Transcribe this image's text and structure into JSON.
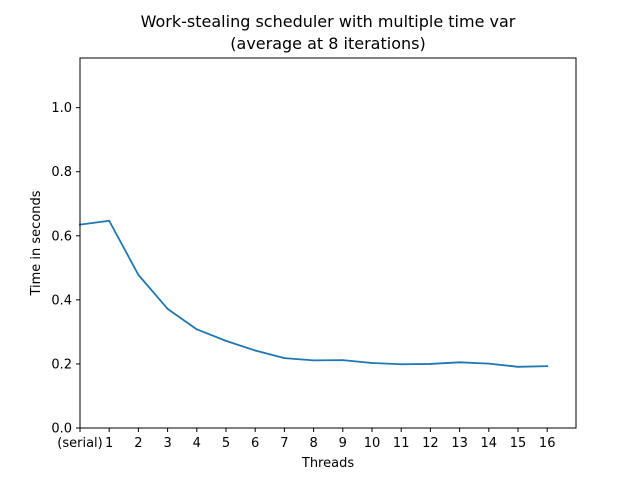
{
  "chart_data": {
    "type": "line",
    "title": "Work-stealing scheduler with multiple time var",
    "subtitle": "(average at 8 iterations)",
    "xlabel": "Threads",
    "ylabel": "Time in seconds",
    "categories": [
      "(serial)",
      "1",
      "2",
      "3",
      "4",
      "5",
      "6",
      "7",
      "8",
      "9",
      "10",
      "11",
      "12",
      "13",
      "14",
      "15",
      "16"
    ],
    "series": [
      {
        "name": "time",
        "color": "#1f77b4",
        "values": [
          0.635,
          0.647,
          0.478,
          0.372,
          0.308,
          0.272,
          0.242,
          0.218,
          0.211,
          0.212,
          0.203,
          0.199,
          0.2,
          0.205,
          0.201,
          0.191,
          0.193
        ]
      }
    ],
    "ylim": [
      0.0,
      1.155
    ],
    "yticks": [
      "0.0",
      "0.2",
      "0.4",
      "0.6",
      "0.8",
      "1.0"
    ],
    "grid": false
  }
}
